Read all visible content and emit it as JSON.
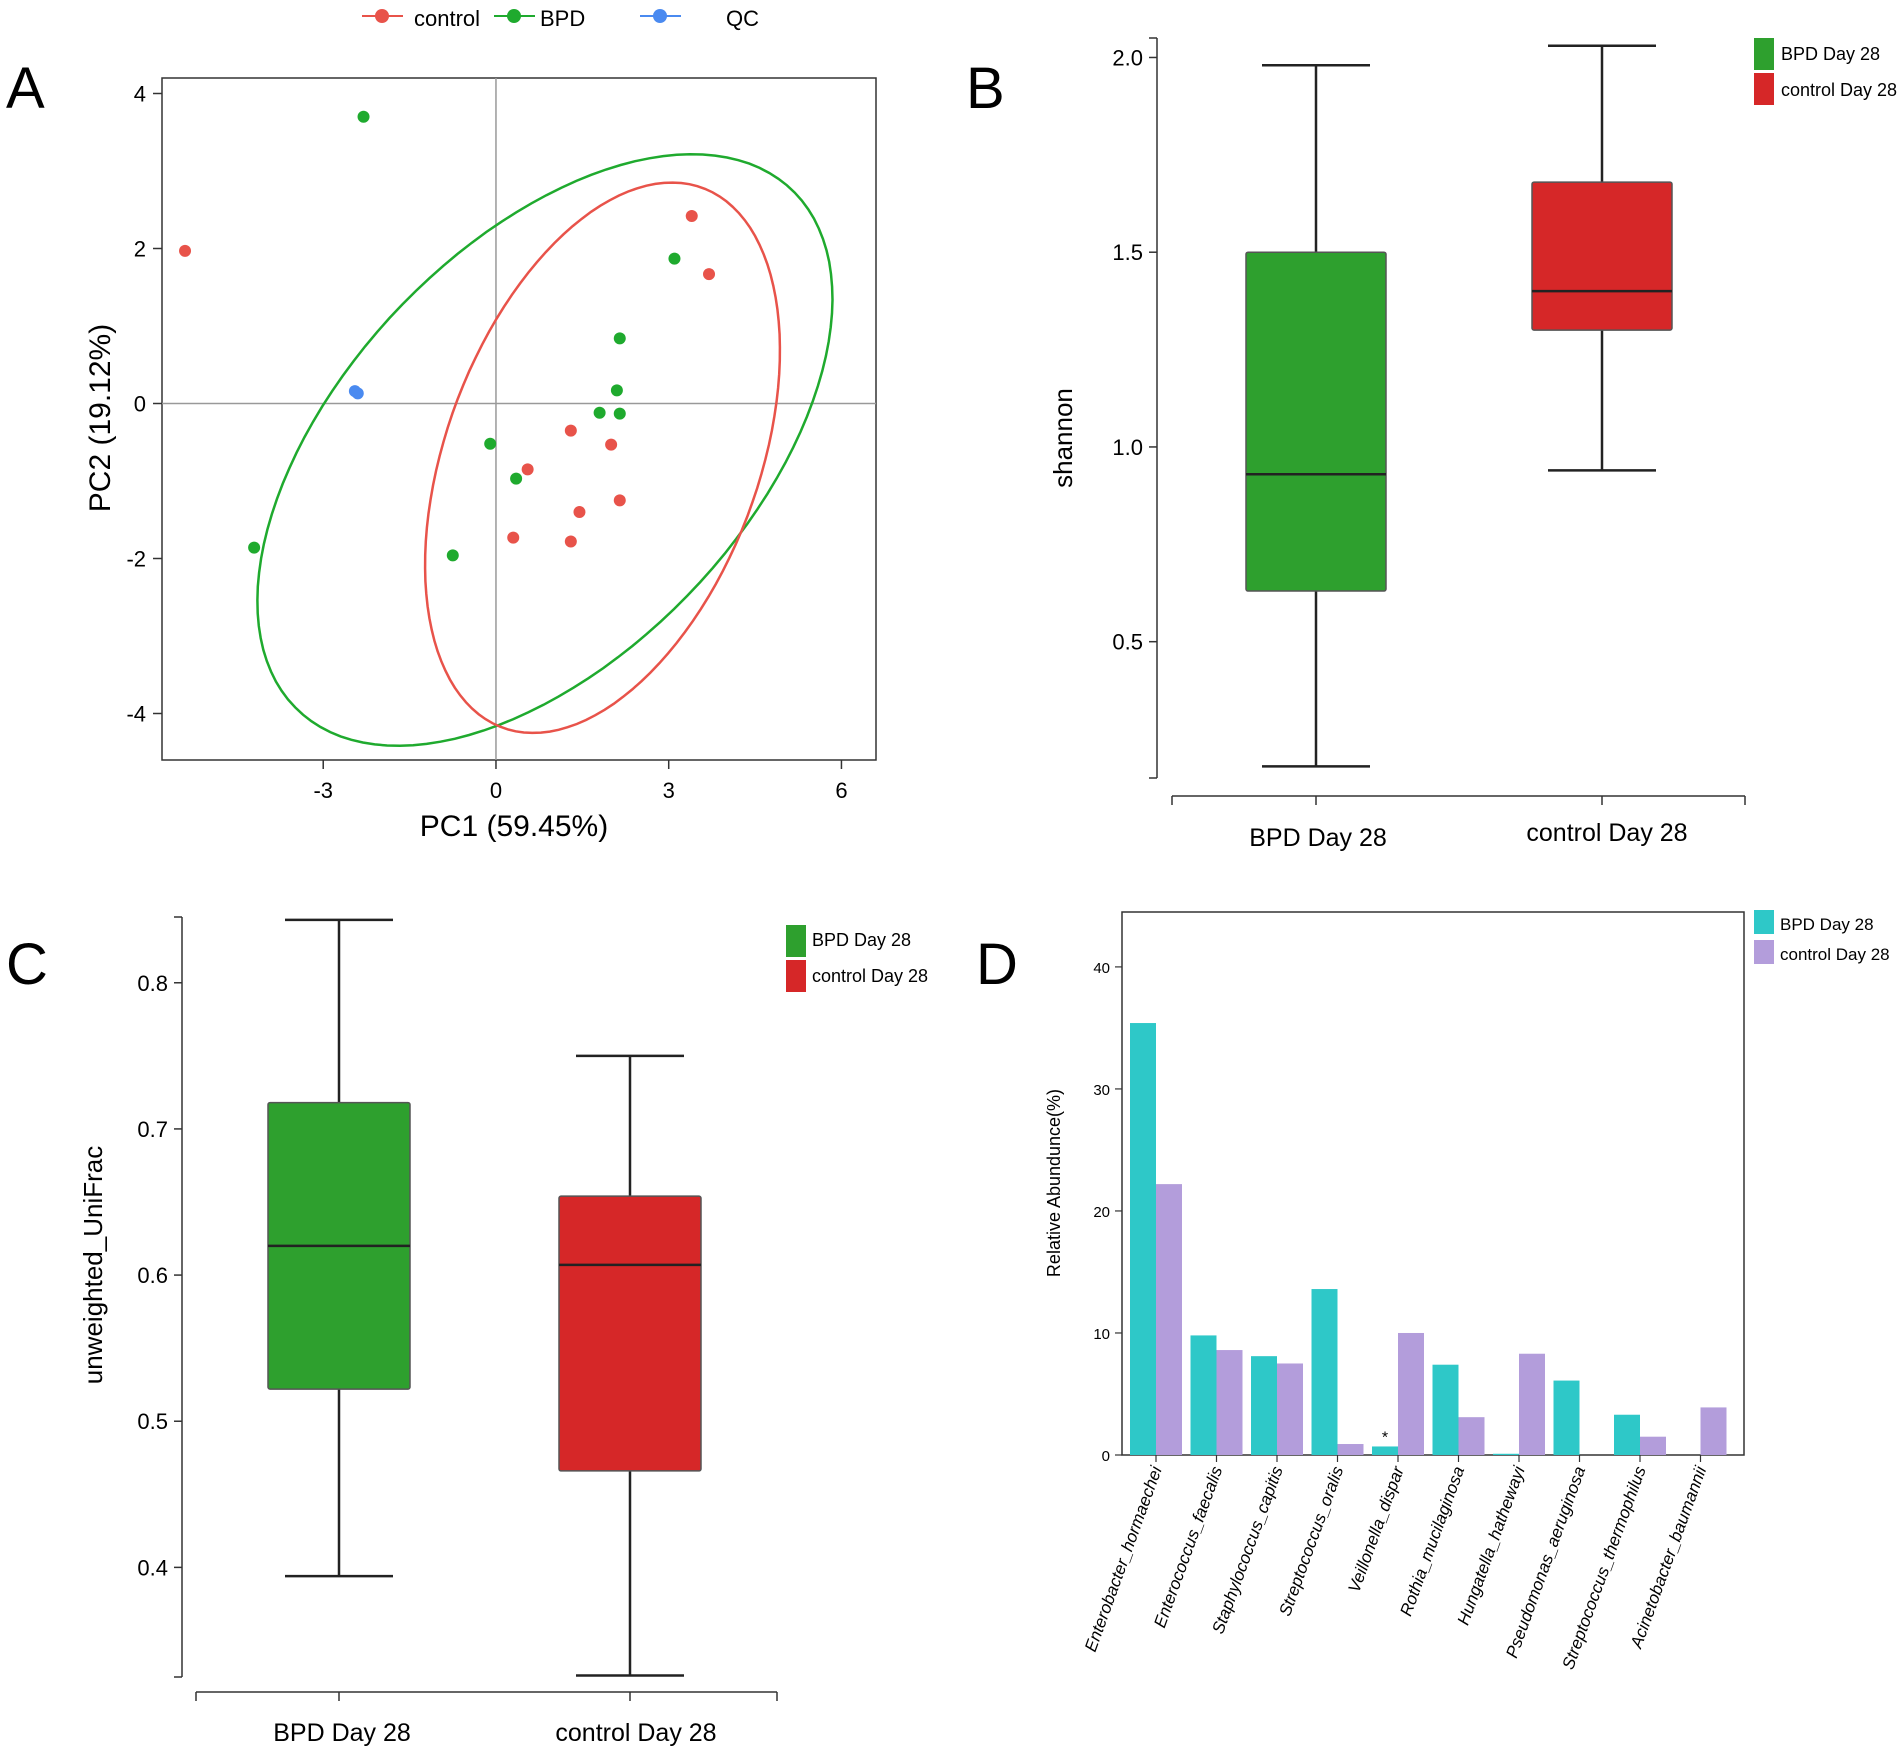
{
  "figure": {
    "panel_letters": [
      "A",
      "B",
      "C",
      "D"
    ]
  },
  "colors": {
    "control": "#e8534a",
    "bpd": "#1faa2e",
    "qc": "#4a8af0",
    "box_green": "#2ea02e",
    "box_red": "#d62728",
    "bar_teal": "#2ec8c8",
    "bar_purple": "#b39ddb",
    "axis": "#333333"
  },
  "chart_data": [
    {
      "panel": "A",
      "type": "scatter",
      "xlabel": "PC1 (59.45%)",
      "ylabel": "PC2 (19.12%)",
      "xlim": [
        -5.8,
        6.6
      ],
      "ylim": [
        -4.6,
        4.2
      ],
      "xticks": [
        -3,
        0,
        3,
        6
      ],
      "yticks": [
        -4,
        -2,
        0,
        2,
        4
      ],
      "legend": [
        "control",
        "BPD",
        "QC"
      ],
      "series": [
        {
          "name": "control",
          "color_key": "control",
          "points": [
            [
              -5.4,
              1.97
            ],
            [
              3.4,
              2.42
            ],
            [
              3.7,
              1.67
            ],
            [
              1.3,
              -0.35
            ],
            [
              2.0,
              -0.53
            ],
            [
              0.55,
              -0.85
            ],
            [
              1.45,
              -1.4
            ],
            [
              2.15,
              -1.25
            ],
            [
              0.3,
              -1.73
            ],
            [
              1.3,
              -1.78
            ]
          ]
        },
        {
          "name": "BPD",
          "color_key": "bpd",
          "points": [
            [
              -2.3,
              3.7
            ],
            [
              3.1,
              1.87
            ],
            [
              2.15,
              0.84
            ],
            [
              2.1,
              0.17
            ],
            [
              1.8,
              -0.12
            ],
            [
              2.15,
              -0.13
            ],
            [
              -0.1,
              -0.52
            ],
            [
              0.35,
              -0.97
            ],
            [
              -4.2,
              -1.86
            ],
            [
              -0.75,
              -1.96
            ]
          ]
        },
        {
          "name": "QC",
          "color_key": "qc",
          "points": [
            [
              -2.45,
              0.16
            ],
            [
              -2.4,
              0.13
            ]
          ]
        }
      ],
      "ellipses": [
        {
          "name": "BPD",
          "color_key": "bpd",
          "cx": 0.85,
          "cy": -0.6,
          "rx": 5.55,
          "ry": 2.95,
          "angle_deg": 31
        },
        {
          "name": "control",
          "color_key": "control",
          "cx": 1.85,
          "cy": -0.7,
          "rx": 3.95,
          "ry": 2.55,
          "angle_deg": 55
        }
      ],
      "reference_lines": {
        "x": 0,
        "y": 0
      }
    },
    {
      "panel": "B",
      "type": "box",
      "ylabel": "shannon",
      "ylim": [
        0.15,
        2.05
      ],
      "yticks": [
        0.5,
        1.0,
        1.5,
        2.0
      ],
      "ytick_labels": [
        "0.5",
        "1.0",
        "1.5",
        "2.0"
      ],
      "categories": [
        "BPD Day 28",
        "control Day 28"
      ],
      "legend": [
        "BPD Day 28",
        "control Day 28"
      ],
      "boxes": [
        {
          "name": "BPD Day 28",
          "color_key": "box_green",
          "min": 0.18,
          "q1": 0.63,
          "median": 0.93,
          "q3": 1.5,
          "max": 1.98
        },
        {
          "name": "control Day 28",
          "color_key": "box_red",
          "min": 0.94,
          "q1": 1.3,
          "median": 1.4,
          "q3": 1.68,
          "max": 2.03
        }
      ]
    },
    {
      "panel": "C",
      "type": "box",
      "ylabel": "unweighted_UniFrac",
      "ylim": [
        0.325,
        0.845
      ],
      "yticks": [
        0.4,
        0.5,
        0.6,
        0.7,
        0.8
      ],
      "ytick_labels": [
        "0.4",
        "0.5",
        "0.6",
        "0.7",
        "0.8"
      ],
      "categories": [
        "BPD Day 28",
        "control Day 28"
      ],
      "legend": [
        "BPD Day 28",
        "control Day 28"
      ],
      "boxes": [
        {
          "name": "BPD Day 28",
          "color_key": "box_green",
          "min": 0.394,
          "q1": 0.522,
          "median": 0.62,
          "q3": 0.718,
          "max": 0.843
        },
        {
          "name": "control Day 28",
          "color_key": "box_red",
          "min": 0.326,
          "q1": 0.466,
          "median": 0.607,
          "q3": 0.654,
          "max": 0.75
        }
      ]
    },
    {
      "panel": "D",
      "type": "bar",
      "ylabel": "Relative Abundunce(%)",
      "ylim": [
        0,
        44.5
      ],
      "yticks": [
        0,
        10,
        20,
        30,
        40
      ],
      "categories": [
        "Enterobacter_hormaechei",
        "Enterococcus_faecalis",
        "Staphylococcus_capitis",
        "Streptococcus_oralis",
        "Veillonella_dispar",
        "Rothia_mucilaginosa",
        "Hungatella_hathewayi",
        "Pseudomonas_aeruginosa",
        "Streptococcus_thermophilus",
        "Acinetobacter_baumannii"
      ],
      "series": [
        {
          "name": "BPD Day 28",
          "color_key": "bar_teal",
          "values": [
            35.4,
            9.8,
            8.1,
            13.6,
            0.7,
            7.4,
            0.1,
            6.1,
            3.3,
            0.0
          ]
        },
        {
          "name": "control Day 28",
          "color_key": "bar_purple",
          "values": [
            22.2,
            8.6,
            7.5,
            0.9,
            10.0,
            3.1,
            8.3,
            0.0,
            1.5,
            3.9
          ]
        }
      ],
      "annotations": [
        {
          "category_index": 4,
          "text": "*"
        }
      ],
      "legend": [
        "BPD Day 28",
        "control Day 28"
      ]
    }
  ]
}
